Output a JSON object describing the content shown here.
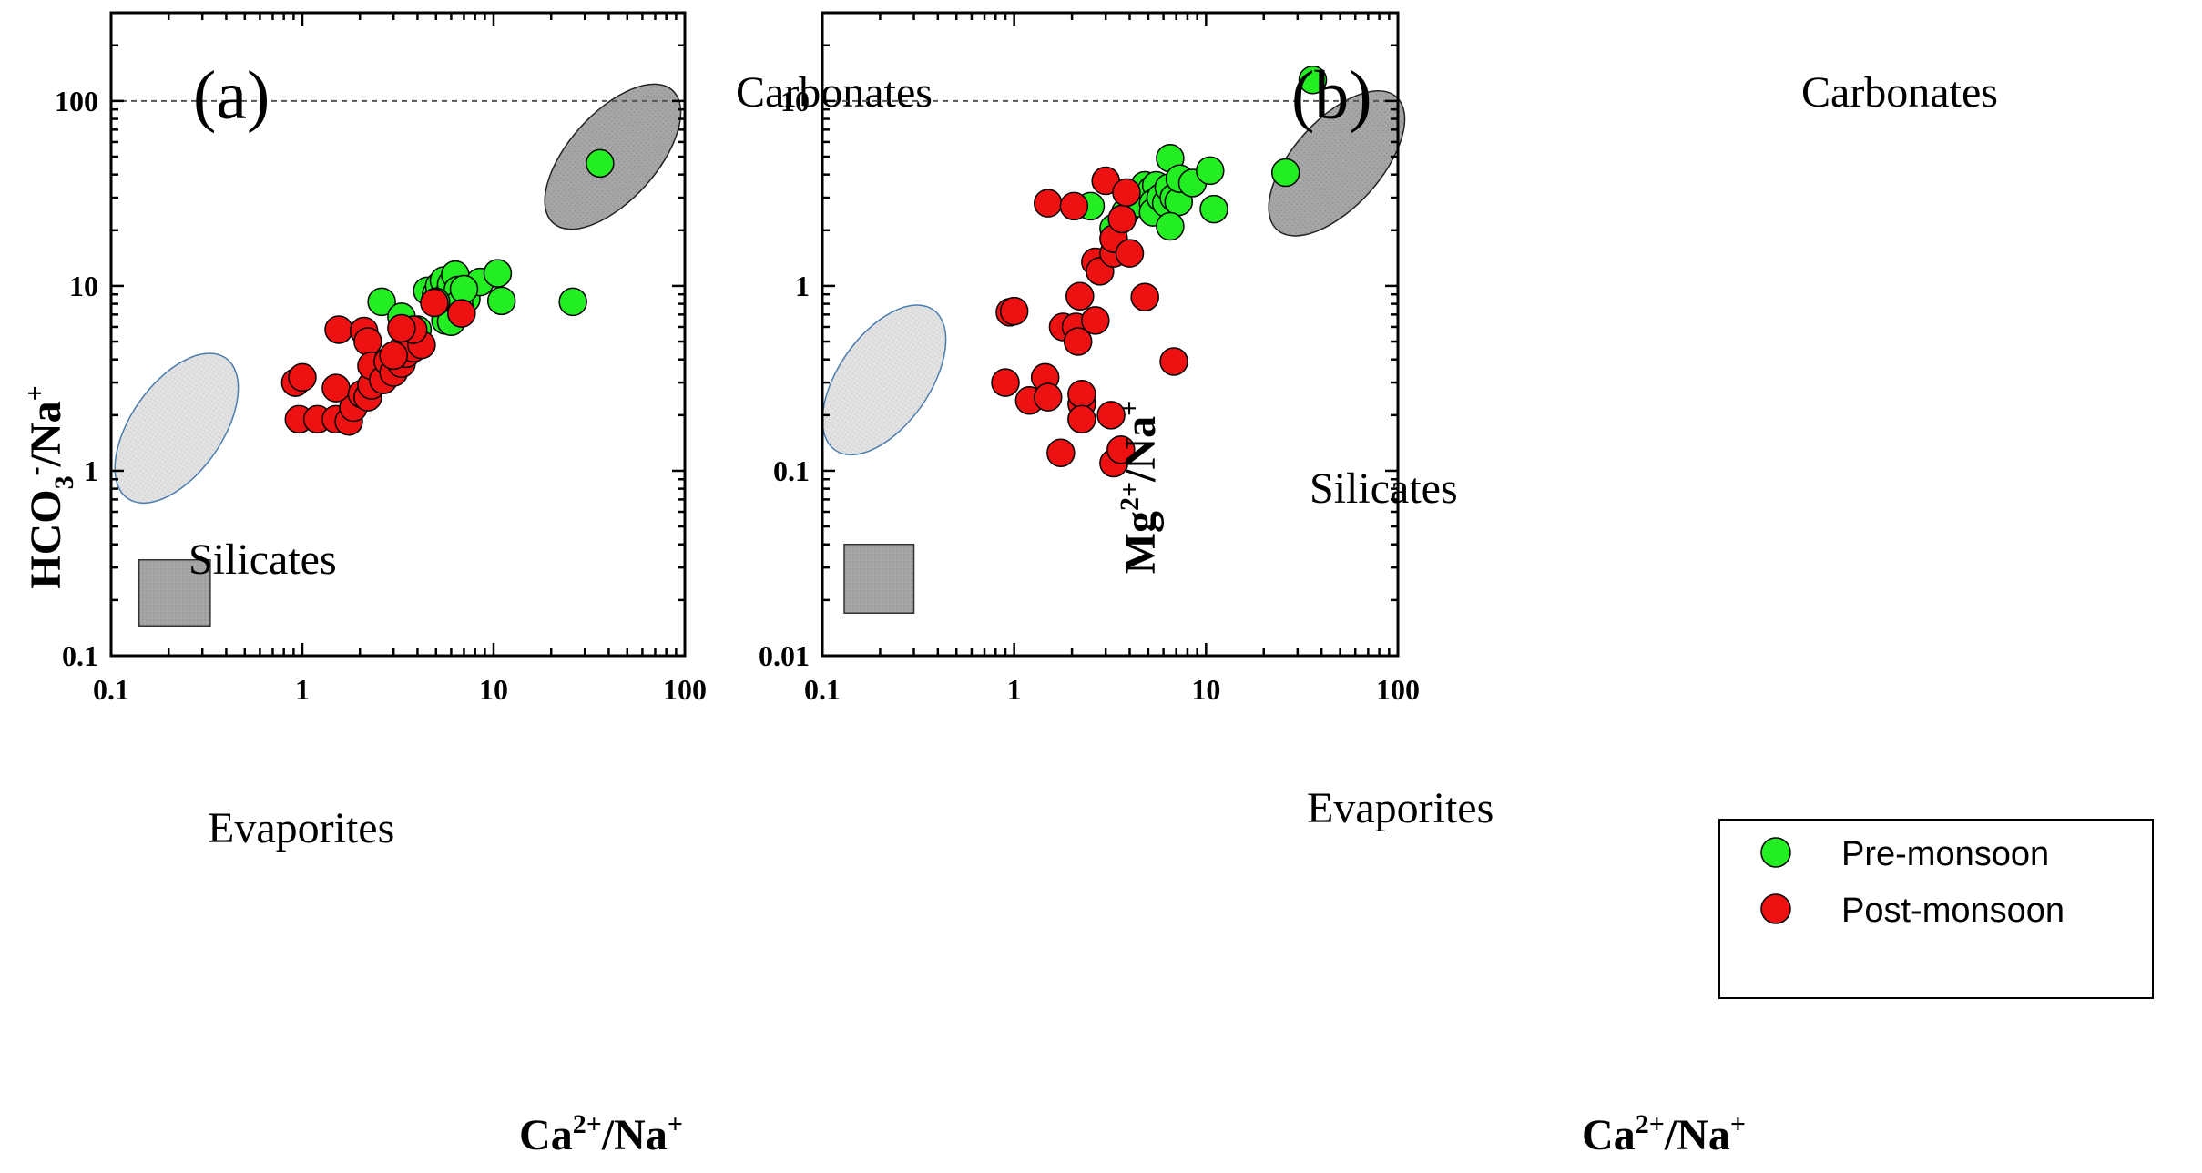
{
  "colors": {
    "pre_monsoon": "#22ee22",
    "post_monsoon": "#ee1111",
    "carbonates_fill": "#a6a6a6",
    "silicates_fill": "#e2e2e2",
    "silicates_stroke": "#4a7db0",
    "evaporites_fill": "#a6a6a6"
  },
  "legend": {
    "pre_label": "Pre-monsoon",
    "post_label": "Post-monsoon"
  },
  "chart_data": [
    {
      "type": "scatter",
      "panel_label": "(a)",
      "xlabel": "Ca2+/Na+",
      "ylabel": "HCO3-/Na+",
      "xscale": "log",
      "yscale": "log",
      "xlim": [
        0.1,
        100
      ],
      "ylim": [
        0.1,
        300
      ],
      "xticks": [
        "0.1",
        "1",
        "10",
        "100"
      ],
      "yticks": [
        "0.1",
        "1",
        "10",
        "100"
      ],
      "reference_line_y": 100,
      "regions": [
        {
          "name": "Carbonates",
          "shape": "ellipse",
          "center": [
            42,
            50
          ],
          "label_pos": "top-right"
        },
        {
          "name": "Silicates",
          "shape": "ellipse",
          "center": [
            0.22,
            1.7
          ],
          "label_pos": "left"
        },
        {
          "name": "Evaporites",
          "shape": "rect",
          "x_range": [
            0.14,
            0.33
          ],
          "y_range": [
            0.145,
            0.33
          ],
          "label_pos": "bottom-left"
        }
      ],
      "series": [
        {
          "name": "Pre-monsoon",
          "points": [
            [
              2.6,
              8.2
            ],
            [
              3.3,
              6.8
            ],
            [
              4.0,
              5.8
            ],
            [
              4.5,
              9.4
            ],
            [
              5.0,
              9.0
            ],
            [
              5.2,
              10.0
            ],
            [
              5.5,
              10.7
            ],
            [
              5.8,
              9.0
            ],
            [
              6.0,
              10.2
            ],
            [
              6.3,
              11.5
            ],
            [
              6.5,
              9.5
            ],
            [
              5.6,
              6.5
            ],
            [
              6.0,
              6.4
            ],
            [
              7.2,
              8.5
            ],
            [
              8.5,
              10.5
            ],
            [
              10.5,
              11.7
            ],
            [
              11.0,
              8.3
            ],
            [
              26.0,
              8.2
            ],
            [
              36.0,
              46.0
            ],
            [
              6.6,
              8.0
            ],
            [
              5.0,
              8.2
            ],
            [
              7.0,
              9.6
            ]
          ]
        },
        {
          "name": "Post-monsoon",
          "points": [
            [
              0.92,
              3.0
            ],
            [
              1.0,
              3.2
            ],
            [
              0.96,
              1.9
            ],
            [
              1.2,
              1.9
            ],
            [
              1.5,
              1.9
            ],
            [
              1.75,
              1.85
            ],
            [
              1.85,
              2.2
            ],
            [
              1.5,
              2.8
            ],
            [
              1.55,
              5.8
            ],
            [
              2.1,
              5.7
            ],
            [
              2.2,
              5.0
            ],
            [
              2.05,
              2.6
            ],
            [
              2.2,
              2.5
            ],
            [
              2.3,
              2.9
            ],
            [
              2.3,
              3.7
            ],
            [
              2.65,
              3.1
            ],
            [
              2.8,
              3.9
            ],
            [
              3.0,
              3.4
            ],
            [
              3.3,
              3.8
            ],
            [
              3.3,
              4.5
            ],
            [
              3.5,
              4.3
            ],
            [
              3.8,
              4.6
            ],
            [
              4.2,
              4.8
            ],
            [
              3.8,
              5.8
            ],
            [
              3.3,
              5.9
            ],
            [
              4.9,
              8.1
            ],
            [
              6.8,
              7.1
            ],
            [
              3.0,
              4.2
            ]
          ]
        }
      ]
    },
    {
      "type": "scatter",
      "panel_label": "(b)",
      "xlabel": "Ca2+/Na+",
      "ylabel": "Mg2+/Na+",
      "xscale": "log",
      "yscale": "log",
      "xlim": [
        0.1,
        100
      ],
      "ylim": [
        0.01,
        30
      ],
      "xticks": [
        "0.1",
        "1",
        "10",
        "100"
      ],
      "yticks": [
        "0.01",
        "0.1",
        "1",
        "10"
      ],
      "reference_line_y": 10,
      "regions": [
        {
          "name": "Carbonates",
          "shape": "ellipse",
          "center": [
            48,
            4.6
          ],
          "label_pos": "top-right"
        },
        {
          "name": "Silicates",
          "shape": "ellipse",
          "center": [
            0.21,
            0.31
          ],
          "label_pos": "left"
        },
        {
          "name": "Evaporites",
          "shape": "rect",
          "x_range": [
            0.13,
            0.3
          ],
          "y_range": [
            0.017,
            0.04
          ],
          "label_pos": "bottom-left"
        }
      ],
      "legend": {
        "position": "bottom-right"
      },
      "series": [
        {
          "name": "Pre-monsoon",
          "points": [
            [
              2.5,
              2.7
            ],
            [
              3.3,
              2.05
            ],
            [
              3.8,
              2.5
            ],
            [
              4.5,
              2.8
            ],
            [
              4.8,
              3.5
            ],
            [
              5.2,
              3.3
            ],
            [
              5.5,
              3.5
            ],
            [
              5.3,
              2.8
            ],
            [
              5.3,
              2.5
            ],
            [
              5.8,
              3.0
            ],
            [
              6.2,
              2.8
            ],
            [
              6.4,
              3.4
            ],
            [
              6.5,
              4.9
            ],
            [
              6.8,
              3.0
            ],
            [
              7.2,
              2.85
            ],
            [
              7.3,
              3.8
            ],
            [
              8.5,
              3.6
            ],
            [
              10.5,
              4.2
            ],
            [
              11.0,
              2.6
            ],
            [
              6.5,
              2.1
            ],
            [
              26.0,
              4.1
            ],
            [
              36.0,
              13.0
            ]
          ]
        },
        {
          "name": "Post-monsoon",
          "points": [
            [
              0.9,
              0.3
            ],
            [
              0.95,
              0.72
            ],
            [
              1.0,
              0.73
            ],
            [
              1.2,
              0.24
            ],
            [
              1.45,
              0.32
            ],
            [
              1.5,
              0.25
            ],
            [
              1.5,
              2.8
            ],
            [
              1.75,
              0.125
            ],
            [
              1.8,
              0.6
            ],
            [
              2.05,
              2.7
            ],
            [
              2.1,
              0.6
            ],
            [
              2.15,
              0.5
            ],
            [
              2.2,
              0.88
            ],
            [
              2.25,
              0.23
            ],
            [
              2.25,
              0.26
            ],
            [
              2.25,
              0.19
            ],
            [
              2.65,
              0.65
            ],
            [
              2.65,
              1.35
            ],
            [
              2.8,
              1.2
            ],
            [
              3.0,
              3.7
            ],
            [
              3.2,
              0.2
            ],
            [
              3.3,
              1.5
            ],
            [
              3.3,
              1.8
            ],
            [
              3.3,
              0.11
            ],
            [
              3.6,
              0.13
            ],
            [
              3.65,
              2.3
            ],
            [
              3.85,
              3.2
            ],
            [
              4.0,
              1.5
            ],
            [
              4.8,
              0.87
            ],
            [
              6.8,
              0.39
            ]
          ]
        }
      ]
    }
  ]
}
